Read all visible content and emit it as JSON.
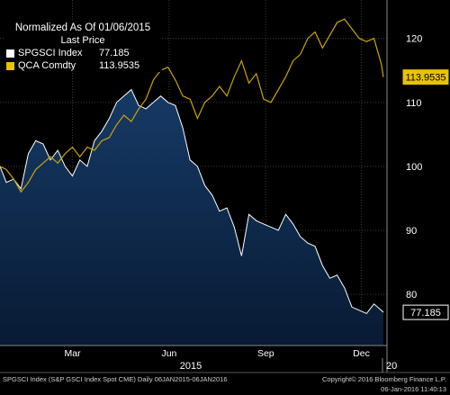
{
  "legend": {
    "title": "Normalized As Of 01/06/2015",
    "subtitle": "Last Price",
    "items": [
      {
        "name": "SPGSCI Index",
        "value": "77.185",
        "color": "#ffffff"
      },
      {
        "name": "QCA Comdty",
        "value": "113.9535",
        "color": "#e8c300"
      }
    ]
  },
  "footer": {
    "left": "SPGSCI Index (S&P GSCI Index Spot CME)  Daily 06JAN2015-06JAN2016",
    "right_line1": "Copyright© 2016 Bloomberg Finance L.P.",
    "right_line2": "06-Jan-2016 11:40:13"
  },
  "colors": {
    "background": "#000000",
    "area_fill": "#0b2446",
    "area_line": "#ffffff",
    "qca_line": "#c9a600",
    "grid": "#3a3a3a",
    "qca_label_bg": "#e8c300"
  },
  "chart_data": {
    "type": "area",
    "x_range": [
      "2015-01-06",
      "2016-01-06"
    ],
    "ylim": [
      72,
      126
    ],
    "yticks": [
      80,
      90,
      100,
      110,
      120
    ],
    "grid": true,
    "legend_position": "top-left",
    "month_labels": [
      "Mar",
      "Jun",
      "Sep",
      "Dec"
    ],
    "year_labels": [
      "2015",
      "20"
    ],
    "last_value_labels": [
      "113.9535",
      "77.185"
    ],
    "series": [
      {
        "name": "SPGSCI Index",
        "style": "area",
        "points": [
          [
            "2015-01-06",
            100
          ],
          [
            "2015-01-12",
            97.5
          ],
          [
            "2015-01-19",
            98
          ],
          [
            "2015-01-26",
            96.5
          ],
          [
            "2015-02-02",
            102
          ],
          [
            "2015-02-09",
            104
          ],
          [
            "2015-02-16",
            103.5
          ],
          [
            "2015-02-23",
            101
          ],
          [
            "2015-03-02",
            102.5
          ],
          [
            "2015-03-09",
            100
          ],
          [
            "2015-03-16",
            98.5
          ],
          [
            "2015-03-23",
            101
          ],
          [
            "2015-03-30",
            100
          ],
          [
            "2015-04-06",
            104
          ],
          [
            "2015-04-13",
            105.5
          ],
          [
            "2015-04-20",
            107.5
          ],
          [
            "2015-04-27",
            110
          ],
          [
            "2015-05-04",
            111
          ],
          [
            "2015-05-11",
            112
          ],
          [
            "2015-05-18",
            109.5
          ],
          [
            "2015-05-25",
            109
          ],
          [
            "2015-06-01",
            110
          ],
          [
            "2015-06-08",
            111
          ],
          [
            "2015-06-15",
            110
          ],
          [
            "2015-06-22",
            109.5
          ],
          [
            "2015-06-29",
            106
          ],
          [
            "2015-07-06",
            101
          ],
          [
            "2015-07-13",
            100
          ],
          [
            "2015-07-20",
            97
          ],
          [
            "2015-07-27",
            95.5
          ],
          [
            "2015-08-03",
            93
          ],
          [
            "2015-08-10",
            93.5
          ],
          [
            "2015-08-17",
            90.5
          ],
          [
            "2015-08-24",
            86
          ],
          [
            "2015-08-31",
            92.5
          ],
          [
            "2015-09-07",
            91.5
          ],
          [
            "2015-09-14",
            91
          ],
          [
            "2015-09-21",
            90.5
          ],
          [
            "2015-09-28",
            90
          ],
          [
            "2015-10-05",
            92.5
          ],
          [
            "2015-10-12",
            91
          ],
          [
            "2015-10-19",
            89
          ],
          [
            "2015-10-26",
            88
          ],
          [
            "2015-11-02",
            87.5
          ],
          [
            "2015-11-09",
            84.5
          ],
          [
            "2015-11-16",
            82.5
          ],
          [
            "2015-11-23",
            83
          ],
          [
            "2015-11-30",
            81
          ],
          [
            "2015-12-07",
            78
          ],
          [
            "2015-12-14",
            77.5
          ],
          [
            "2015-12-21",
            77
          ],
          [
            "2015-12-28",
            78.5
          ],
          [
            "2016-01-04",
            77.5
          ],
          [
            "2016-01-06",
            77.185
          ]
        ]
      },
      {
        "name": "QCA Comdty",
        "style": "line",
        "points": [
          [
            "2015-01-06",
            100
          ],
          [
            "2015-01-12",
            99.5
          ],
          [
            "2015-01-19",
            98
          ],
          [
            "2015-01-26",
            96
          ],
          [
            "2015-02-02",
            97.5
          ],
          [
            "2015-02-09",
            99.5
          ],
          [
            "2015-02-16",
            100.5
          ],
          [
            "2015-02-23",
            101.5
          ],
          [
            "2015-03-02",
            100.5
          ],
          [
            "2015-03-09",
            102
          ],
          [
            "2015-03-16",
            103
          ],
          [
            "2015-03-23",
            101.5
          ],
          [
            "2015-03-30",
            103
          ],
          [
            "2015-04-06",
            102.5
          ],
          [
            "2015-04-13",
            104
          ],
          [
            "2015-04-20",
            104.5
          ],
          [
            "2015-04-27",
            106.5
          ],
          [
            "2015-05-04",
            108
          ],
          [
            "2015-05-11",
            107
          ],
          [
            "2015-05-18",
            109
          ],
          [
            "2015-05-25",
            110.5
          ],
          [
            "2015-06-01",
            113.5
          ],
          [
            "2015-06-08",
            115
          ],
          [
            "2015-06-15",
            115.5
          ],
          [
            "2015-06-22",
            113.5
          ],
          [
            "2015-06-29",
            111
          ],
          [
            "2015-07-06",
            110.5
          ],
          [
            "2015-07-13",
            107.5
          ],
          [
            "2015-07-20",
            110
          ],
          [
            "2015-07-27",
            111
          ],
          [
            "2015-08-03",
            112.5
          ],
          [
            "2015-08-10",
            111
          ],
          [
            "2015-08-17",
            114
          ],
          [
            "2015-08-24",
            116.5
          ],
          [
            "2015-08-31",
            113
          ],
          [
            "2015-09-07",
            114.5
          ],
          [
            "2015-09-14",
            110.5
          ],
          [
            "2015-09-21",
            110
          ],
          [
            "2015-09-28",
            112
          ],
          [
            "2015-10-05",
            114
          ],
          [
            "2015-10-12",
            116.5
          ],
          [
            "2015-10-19",
            117.5
          ],
          [
            "2015-10-26",
            120
          ],
          [
            "2015-11-02",
            121
          ],
          [
            "2015-11-09",
            118.5
          ],
          [
            "2015-11-16",
            120.5
          ],
          [
            "2015-11-23",
            122.5
          ],
          [
            "2015-11-30",
            123
          ],
          [
            "2015-12-07",
            121.5
          ],
          [
            "2015-12-14",
            120
          ],
          [
            "2015-12-21",
            119.5
          ],
          [
            "2015-12-28",
            120
          ],
          [
            "2016-01-04",
            116
          ],
          [
            "2016-01-06",
            113.9535
          ]
        ]
      }
    ]
  }
}
